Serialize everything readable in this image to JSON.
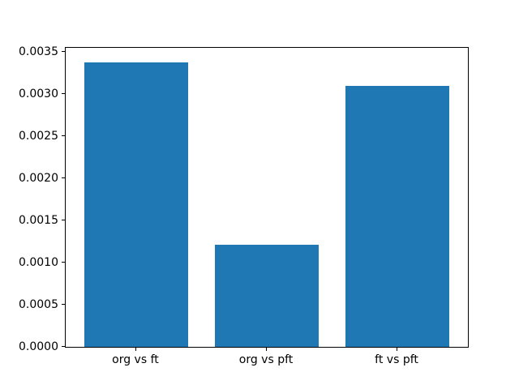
{
  "figure": {
    "background": "#ffffff",
    "spine_color": "#000000",
    "text_color": "#000000"
  },
  "chart_data": {
    "type": "bar",
    "categories": [
      "org vs ft",
      "org vs pft",
      "ft vs pft"
    ],
    "values": [
      0.00338,
      0.00121,
      0.0031
    ],
    "title": "",
    "xlabel": "",
    "ylabel": "",
    "ylim": [
      0,
      0.00355
    ],
    "yticks": [
      0.0,
      0.0005,
      0.001,
      0.0015,
      0.002,
      0.0025,
      0.003,
      0.0035
    ],
    "ytick_labels": [
      "0.0000",
      "0.0005",
      "0.0010",
      "0.0015",
      "0.0020",
      "0.0025",
      "0.0030",
      "0.0035"
    ],
    "bar_color": "#1f77b4",
    "bar_width_fraction": 0.8,
    "category_margin": 0.54,
    "grid": false,
    "legend": null
  }
}
